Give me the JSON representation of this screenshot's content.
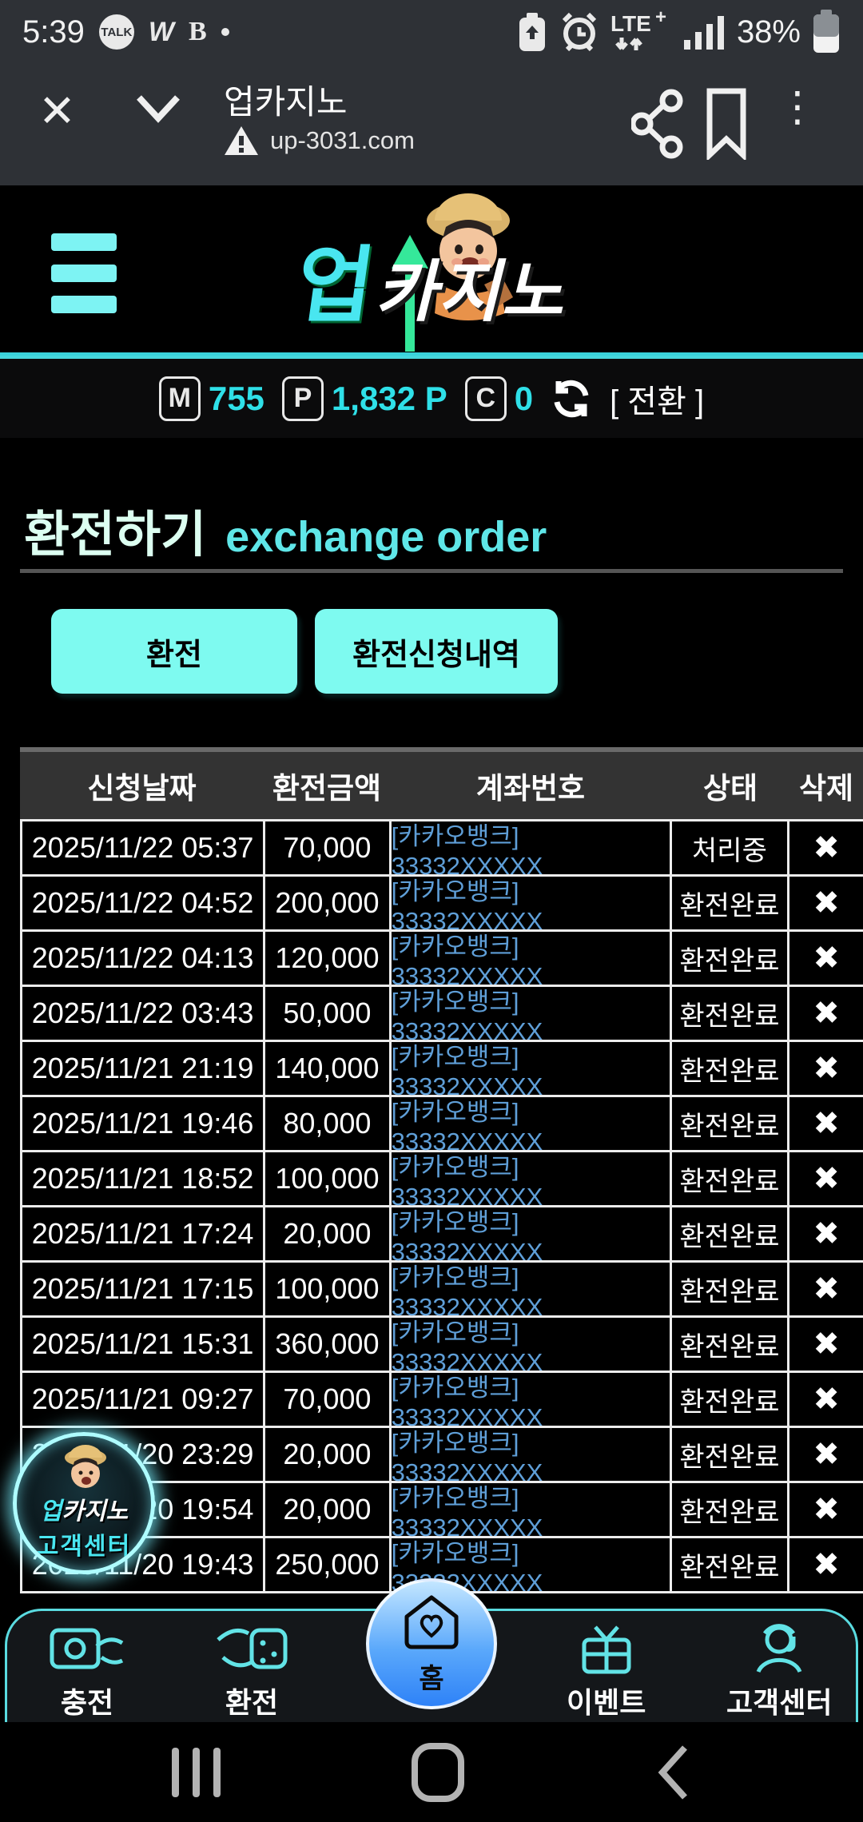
{
  "colors": {
    "accent_cyan": "#5adbe0",
    "button_cyan": "#7efaf0",
    "link_blue": "#5f9fd8",
    "home_blue": "#2e82f7",
    "title_mint": "#dcfff1"
  },
  "status_bar": {
    "time": "5:39",
    "talk_label": "TALK",
    "w_glyph": "W",
    "b_glyph": "B",
    "network_label": "LTE+",
    "battery_percent": "38%"
  },
  "browser": {
    "title": "업카지노",
    "url": "up-3031.com",
    "close_glyph": "✕",
    "menu_glyph": "⋮"
  },
  "header": {
    "logo_up": "업",
    "logo_casino": "카지노"
  },
  "balance": {
    "m_label": "M",
    "m_value": "755",
    "p_label": "P",
    "p_value": "1,832 P",
    "c_label": "C",
    "c_value": "0",
    "convert_label": "[ 전환 ]"
  },
  "page": {
    "title_ko": "환전하기",
    "title_en": "exchange order"
  },
  "actions": {
    "exchange_label": "환전",
    "history_label": "환전신청내역"
  },
  "table": {
    "headers": [
      "신청날짜",
      "환전금액",
      "계좌번호",
      "상태",
      "삭제"
    ],
    "delete_glyph": "✖",
    "rows": [
      {
        "date": "2025/11/22 05:37",
        "amount": "70,000",
        "account": "[카카오뱅크] 33332XXXXX",
        "status": "처리중"
      },
      {
        "date": "2025/11/22 04:52",
        "amount": "200,000",
        "account": "[카카오뱅크] 33332XXXXX",
        "status": "환전완료"
      },
      {
        "date": "2025/11/22 04:13",
        "amount": "120,000",
        "account": "[카카오뱅크] 33332XXXXX",
        "status": "환전완료"
      },
      {
        "date": "2025/11/22 03:43",
        "amount": "50,000",
        "account": "[카카오뱅크] 33332XXXXX",
        "status": "환전완료"
      },
      {
        "date": "2025/11/21 21:19",
        "amount": "140,000",
        "account": "[카카오뱅크] 33332XXXXX",
        "status": "환전완료"
      },
      {
        "date": "2025/11/21 19:46",
        "amount": "80,000",
        "account": "[카카오뱅크] 33332XXXXX",
        "status": "환전완료"
      },
      {
        "date": "2025/11/21 18:52",
        "amount": "100,000",
        "account": "[카카오뱅크] 33332XXXXX",
        "status": "환전완료"
      },
      {
        "date": "2025/11/21 17:24",
        "amount": "20,000",
        "account": "[카카오뱅크] 33332XXXXX",
        "status": "환전완료"
      },
      {
        "date": "2025/11/21 17:15",
        "amount": "100,000",
        "account": "[카카오뱅크] 33332XXXXX",
        "status": "환전완료"
      },
      {
        "date": "2025/11/21 15:31",
        "amount": "360,000",
        "account": "[카카오뱅크] 33332XXXXX",
        "status": "환전완료"
      },
      {
        "date": "2025/11/21 09:27",
        "amount": "70,000",
        "account": "[카카오뱅크] 33332XXXXX",
        "status": "환전완료"
      },
      {
        "date": "2025/11/20 23:29",
        "amount": "20,000",
        "account": "[카카오뱅크] 33332XXXXX",
        "status": "환전완료"
      },
      {
        "date": "2025/11/20 19:54",
        "amount": "20,000",
        "account": "[카카오뱅크] 33332XXXXX",
        "status": "환전완료"
      },
      {
        "date": "2025/11/20 19:43",
        "amount": "250,000",
        "account": "[카카오뱅크] 33332XXXXX",
        "status": "환전완료"
      }
    ]
  },
  "floating_badge": {
    "line1_up": "업",
    "line1_casino": "카지노",
    "line2": "고객센터"
  },
  "bottom_nav": {
    "charge": "충전",
    "exchange": "환전",
    "home": "홈",
    "event": "이벤트",
    "support": "고객센터"
  }
}
